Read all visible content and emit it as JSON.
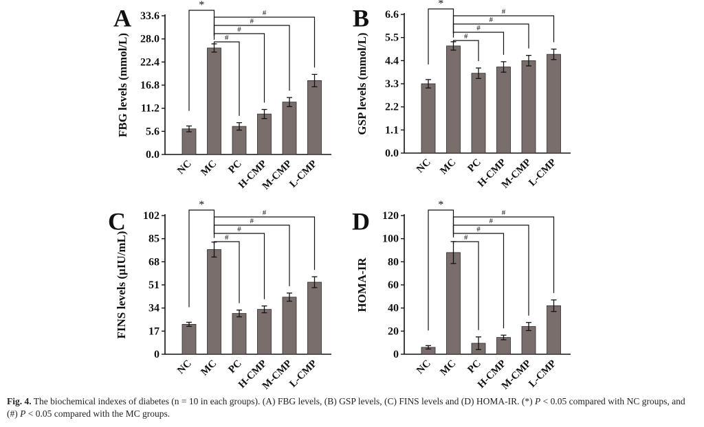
{
  "figure": {
    "panel_style": {
      "bar_color": "#7a6e6c",
      "bar_stroke": "#2a2a2a",
      "axis_color": "#111111"
    }
  },
  "caption": {
    "fig_label": "Fig. 4.",
    "part1": " The biochemical indexes of diabetes (n = 10 in each groups). (A) FBG levels, (B) GSP levels, (C) FINS levels and (D) HOMA-IR. (*) ",
    "p1": "P",
    "part2": " < 0.05 compared with NC groups, and (#) ",
    "p2": "P",
    "part3": " < 0.05 compared with the MC groups."
  },
  "chart_data": [
    {
      "panel": "A",
      "type": "bar",
      "ylabel": "FBG levels (mmol/L)",
      "categories": [
        "NC",
        "MC",
        "PC",
        "H-CMP",
        "M-CMP",
        "L-CMP"
      ],
      "values": [
        6.2,
        25.8,
        6.8,
        9.8,
        12.7,
        17.9
      ],
      "errors": [
        0.7,
        1.0,
        0.9,
        1.1,
        1.1,
        1.5
      ],
      "ylim": [
        0,
        33.6
      ],
      "yticks": [
        "0.0",
        "5.6",
        "11.2",
        "16.8",
        "22.4",
        "28.0",
        "33.6"
      ],
      "brackets": [
        {
          "from": "NC",
          "to": "MC",
          "label": "*"
        },
        {
          "from": "MC",
          "to": "PC",
          "label": "#"
        },
        {
          "from": "MC",
          "to": "H-CMP",
          "label": "#"
        },
        {
          "from": "MC",
          "to": "M-CMP",
          "label": "#"
        },
        {
          "from": "MC",
          "to": "L-CMP",
          "label": "#"
        }
      ]
    },
    {
      "panel": "B",
      "type": "bar",
      "ylabel": "GSP levels (mmol/L)",
      "categories": [
        "NC",
        "MC",
        "PC",
        "H-CMP",
        "M-CMP",
        "L-CMP"
      ],
      "values": [
        3.3,
        5.1,
        3.8,
        4.1,
        4.4,
        4.7
      ],
      "errors": [
        0.2,
        0.2,
        0.25,
        0.25,
        0.25,
        0.25
      ],
      "ylim": [
        0,
        6.6
      ],
      "yticks": [
        "0.0",
        "1.1",
        "2.2",
        "3.3",
        "4.4",
        "5.5",
        "6.6"
      ],
      "brackets": [
        {
          "from": "NC",
          "to": "MC",
          "label": "*"
        },
        {
          "from": "MC",
          "to": "PC",
          "label": "#"
        },
        {
          "from": "MC",
          "to": "H-CMP",
          "label": "#"
        },
        {
          "from": "MC",
          "to": "M-CMP",
          "label": "#"
        },
        {
          "from": "MC",
          "to": "L-CMP",
          "label": "#"
        }
      ]
    },
    {
      "panel": "C",
      "type": "bar",
      "ylabel": "FINS levels (μIU/mL)",
      "categories": [
        "NC",
        "MC",
        "PC",
        "H-CMP",
        "M-CMP",
        "L-CMP"
      ],
      "values": [
        22,
        77,
        30,
        33,
        42,
        53
      ],
      "errors": [
        1.5,
        5.5,
        2.5,
        2.5,
        3.0,
        4.0
      ],
      "ylim": [
        0,
        102
      ],
      "yticks": [
        "0",
        "17",
        "34",
        "51",
        "68",
        "85",
        "102"
      ],
      "brackets": [
        {
          "from": "NC",
          "to": "MC",
          "label": "*"
        },
        {
          "from": "MC",
          "to": "PC",
          "label": "#"
        },
        {
          "from": "MC",
          "to": "H-CMP",
          "label": "#"
        },
        {
          "from": "MC",
          "to": "M-CMP",
          "label": "#"
        },
        {
          "from": "MC",
          "to": "L-CMP",
          "label": "#"
        }
      ]
    },
    {
      "panel": "D",
      "type": "bar",
      "ylabel": "HOMA-IR",
      "categories": [
        "NC",
        "MC",
        "PC",
        "H-CMP",
        "M-CMP",
        "L-CMP"
      ],
      "values": [
        6,
        88,
        9.5,
        14.5,
        24,
        42
      ],
      "errors": [
        1.5,
        9.5,
        5.5,
        2.0,
        3.5,
        5.0
      ],
      "ylim": [
        0,
        120
      ],
      "yticks": [
        "0",
        "20",
        "40",
        "60",
        "80",
        "100",
        "120"
      ],
      "brackets": [
        {
          "from": "NC",
          "to": "MC",
          "label": "*"
        },
        {
          "from": "MC",
          "to": "PC",
          "label": "#"
        },
        {
          "from": "MC",
          "to": "H-CMP",
          "label": "#"
        },
        {
          "from": "MC",
          "to": "M-CMP",
          "label": "#"
        },
        {
          "from": "MC",
          "to": "L-CMP",
          "label": "#"
        }
      ]
    }
  ]
}
